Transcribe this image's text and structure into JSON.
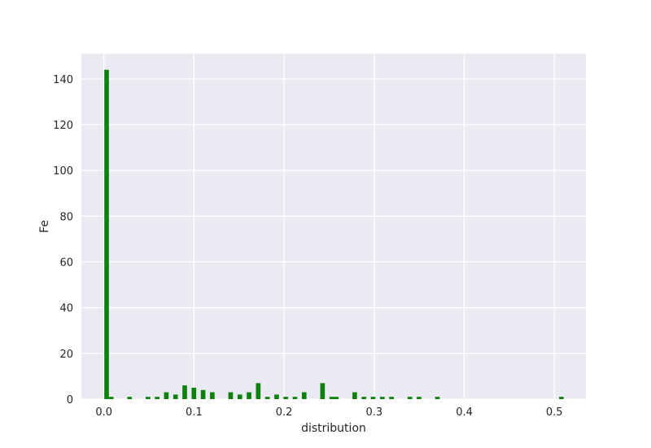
{
  "chart_data": {
    "type": "bar",
    "title": "",
    "xlabel": "distribution",
    "ylabel": "Fe",
    "xlim": [
      -0.025,
      0.535
    ],
    "ylim": [
      0,
      151
    ],
    "xticks": [
      0.0,
      0.1,
      0.2,
      0.3,
      0.4,
      0.5
    ],
    "xtick_labels": [
      "0.0",
      "0.1",
      "0.2",
      "0.3",
      "0.4",
      "0.5"
    ],
    "yticks": [
      0,
      20,
      40,
      60,
      80,
      100,
      120,
      140
    ],
    "ytick_labels": [
      "0",
      "20",
      "40",
      "60",
      "80",
      "100",
      "120",
      "140"
    ],
    "grid": true,
    "background_color": "#eaeaf2",
    "grid_color": "#ffffff",
    "bar_color": "#0e800e",
    "bin_width": 0.0051,
    "bins": [
      {
        "x": 0.003,
        "count": 144
      },
      {
        "x": 0.0081,
        "count": 1
      },
      {
        "x": 0.0285,
        "count": 1
      },
      {
        "x": 0.0489,
        "count": 1
      },
      {
        "x": 0.0591,
        "count": 1
      },
      {
        "x": 0.0693,
        "count": 3
      },
      {
        "x": 0.0795,
        "count": 2
      },
      {
        "x": 0.0897,
        "count": 6
      },
      {
        "x": 0.0999,
        "count": 5
      },
      {
        "x": 0.1101,
        "count": 4
      },
      {
        "x": 0.1203,
        "count": 3
      },
      {
        "x": 0.1407,
        "count": 3
      },
      {
        "x": 0.1509,
        "count": 2
      },
      {
        "x": 0.1611,
        "count": 3
      },
      {
        "x": 0.1713,
        "count": 7
      },
      {
        "x": 0.1815,
        "count": 1
      },
      {
        "x": 0.1917,
        "count": 2
      },
      {
        "x": 0.2019,
        "count": 1
      },
      {
        "x": 0.2121,
        "count": 1
      },
      {
        "x": 0.2223,
        "count": 3
      },
      {
        "x": 0.2427,
        "count": 7
      },
      {
        "x": 0.2529,
        "count": 1
      },
      {
        "x": 0.258,
        "count": 1
      },
      {
        "x": 0.2784,
        "count": 3
      },
      {
        "x": 0.2886,
        "count": 1
      },
      {
        "x": 0.2988,
        "count": 1
      },
      {
        "x": 0.309,
        "count": 1
      },
      {
        "x": 0.3192,
        "count": 1
      },
      {
        "x": 0.3396,
        "count": 1
      },
      {
        "x": 0.3498,
        "count": 1
      },
      {
        "x": 0.3702,
        "count": 1
      },
      {
        "x": 0.5078,
        "count": 1
      }
    ]
  }
}
